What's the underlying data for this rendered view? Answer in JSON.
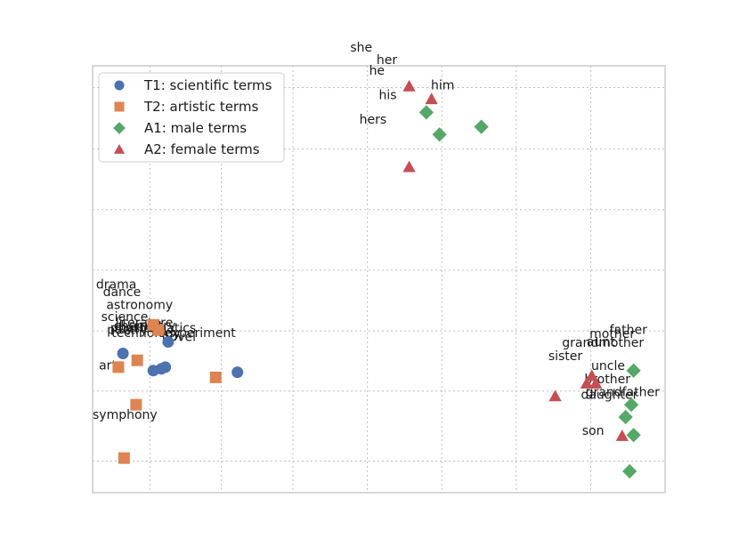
{
  "chart_data": {
    "type": "scatter",
    "title": "",
    "xlabel": "",
    "ylabel": "",
    "grid": true,
    "legend_position": "top-left",
    "axes_tick_labels_visible": false,
    "xlim": [
      0,
      100
    ],
    "ylim": [
      0,
      100
    ],
    "series": [
      {
        "name": "T1: scientific terms",
        "marker": "circle",
        "color": "#4c72b0",
        "points": [
          {
            "x": 5.3,
            "y": 32.6
          },
          {
            "x": 10.6,
            "y": 28.6
          },
          {
            "x": 12.0,
            "y": 29.0
          },
          {
            "x": 12.7,
            "y": 29.4
          },
          {
            "x": 13.2,
            "y": 35.3
          },
          {
            "x": 25.3,
            "y": 28.2
          }
        ]
      },
      {
        "name": "T2: artistic terms",
        "marker": "square",
        "color": "#dd8452",
        "points": [
          {
            "x": 10.6,
            "y": 39.3
          },
          {
            "x": 11.5,
            "y": 38.1
          },
          {
            "x": 4.5,
            "y": 29.4
          },
          {
            "x": 7.8,
            "y": 31.0
          },
          {
            "x": 21.5,
            "y": 27.0
          },
          {
            "x": 7.6,
            "y": 20.6
          },
          {
            "x": 5.5,
            "y": 8.1
          }
        ]
      },
      {
        "name": "A1: male terms",
        "marker": "diamond",
        "color": "#55a868",
        "points": [
          {
            "x": 58.3,
            "y": 89.1
          },
          {
            "x": 60.6,
            "y": 83.9
          },
          {
            "x": 67.9,
            "y": 85.7
          },
          {
            "x": 94.5,
            "y": 28.6
          },
          {
            "x": 94.1,
            "y": 20.6
          },
          {
            "x": 93.1,
            "y": 17.7
          },
          {
            "x": 94.5,
            "y": 13.5
          },
          {
            "x": 93.8,
            "y": 5.0
          }
        ]
      },
      {
        "name": "A2: female terms",
        "marker": "triangle",
        "color": "#c44e52",
        "points": [
          {
            "x": 55.3,
            "y": 95.2
          },
          {
            "x": 59.2,
            "y": 92.2
          },
          {
            "x": 55.3,
            "y": 76.3
          },
          {
            "x": 87.2,
            "y": 27.4
          },
          {
            "x": 86.3,
            "y": 25.6
          },
          {
            "x": 87.9,
            "y": 25.6
          },
          {
            "x": 80.8,
            "y": 22.6
          },
          {
            "x": 92.5,
            "y": 13.3
          }
        ]
      }
    ],
    "annotations": [
      {
        "text": "she",
        "x": 45.0,
        "y": 103.3
      },
      {
        "text": "her",
        "x": 49.6,
        "y": 100.4
      },
      {
        "text": "he",
        "x": 48.3,
        "y": 97.9
      },
      {
        "text": "him",
        "x": 59.1,
        "y": 94.5
      },
      {
        "text": "his",
        "x": 50.0,
        "y": 92.2
      },
      {
        "text": "hers",
        "x": 46.6,
        "y": 86.5
      },
      {
        "text": "drama",
        "x": 0.6,
        "y": 47.8
      },
      {
        "text": "dance",
        "x": 1.8,
        "y": 46.0
      },
      {
        "text": "astronomy",
        "x": 2.4,
        "y": 43.0
      },
      {
        "text": "science",
        "x": 1.5,
        "y": 40.2
      },
      {
        "text": "literature",
        "x": 4.0,
        "y": 38.9
      },
      {
        "text": "chemistry",
        "x": 3.7,
        "y": 38.1
      },
      {
        "text": "mathematics",
        "x": 3.8,
        "y": 37.6
      },
      {
        "text": "poetry",
        "x": 2.5,
        "y": 37.2
      },
      {
        "text": "physics",
        "x": 3.1,
        "y": 37.6
      },
      {
        "text": "technology",
        "x": 3.3,
        "y": 36.5
      },
      {
        "text": "experiment",
        "x": 12.5,
        "y": 36.5
      },
      {
        "text": "novel",
        "x": 12.1,
        "y": 35.5
      },
      {
        "text": "art",
        "x": 1.1,
        "y": 28.9
      },
      {
        "text": "symphony",
        "x": 0.0,
        "y": 17.3
      },
      {
        "text": "father",
        "x": 90.3,
        "y": 37.2
      },
      {
        "text": "mother",
        "x": 86.8,
        "y": 36.3
      },
      {
        "text": "grandmother",
        "x": 82.0,
        "y": 34.2
      },
      {
        "text": "aunt",
        "x": 86.3,
        "y": 34.4
      },
      {
        "text": "sister",
        "x": 79.6,
        "y": 31.0
      },
      {
        "text": "uncle",
        "x": 87.1,
        "y": 28.8
      },
      {
        "text": "brother",
        "x": 85.9,
        "y": 25.6
      },
      {
        "text": "grandfather",
        "x": 86.1,
        "y": 22.6
      },
      {
        "text": "daughter",
        "x": 85.3,
        "y": 22.0
      },
      {
        "text": "son",
        "x": 85.5,
        "y": 13.5
      }
    ]
  }
}
